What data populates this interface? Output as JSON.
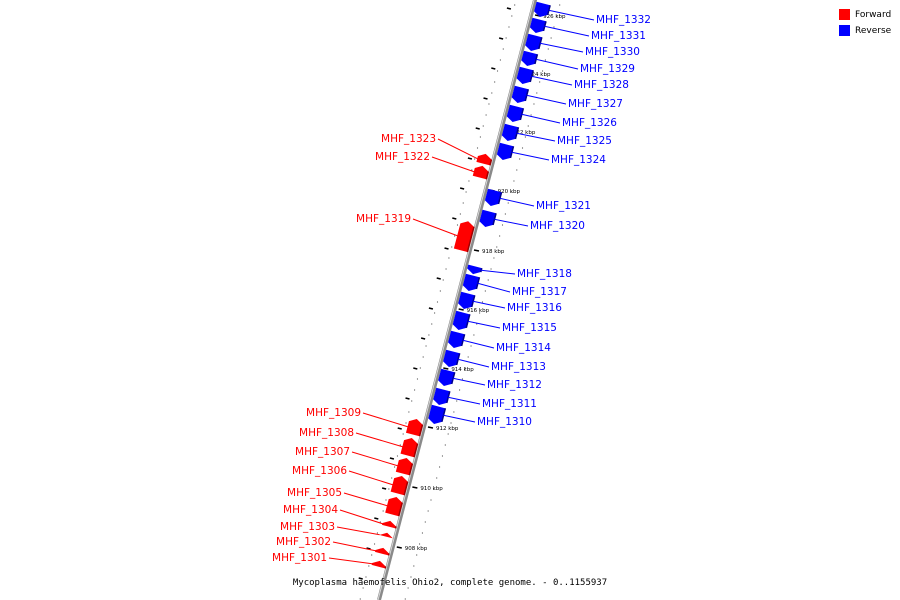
{
  "caption": "Mycoplasma haemofelis Ohio2, complete genome. - 0..1155937",
  "legend": [
    {
      "label": "Forward",
      "color": "#ff0000"
    },
    {
      "label": "Reverse",
      "color": "#0000ff"
    }
  ],
  "colors": {
    "forward": "#ff0000",
    "reverse": "#0000ff",
    "axis": "#8a8a8a",
    "tick": "#000000"
  },
  "scale": {
    "kbp_labels": [
      "908 kbp",
      "910 kbp",
      "912 kbp",
      "914 kbp",
      "916 kbp",
      "918 kbp",
      "920 kbp",
      "922 kbp",
      "924 kbp",
      "926 kbp"
    ]
  },
  "genes": [
    {
      "name": "MHF_1332",
      "strand": "reverse"
    },
    {
      "name": "MHF_1331",
      "strand": "reverse"
    },
    {
      "name": "MHF_1330",
      "strand": "reverse"
    },
    {
      "name": "MHF_1329",
      "strand": "reverse"
    },
    {
      "name": "MHF_1328",
      "strand": "reverse"
    },
    {
      "name": "MHF_1327",
      "strand": "reverse"
    },
    {
      "name": "MHF_1326",
      "strand": "reverse"
    },
    {
      "name": "MHF_1325",
      "strand": "reverse"
    },
    {
      "name": "MHF_1324",
      "strand": "reverse"
    },
    {
      "name": "MHF_1323",
      "strand": "forward"
    },
    {
      "name": "MHF_1322",
      "strand": "forward"
    },
    {
      "name": "MHF_1321",
      "strand": "reverse"
    },
    {
      "name": "MHF_1320",
      "strand": "reverse"
    },
    {
      "name": "MHF_1319",
      "strand": "forward"
    },
    {
      "name": "MHF_1318",
      "strand": "reverse"
    },
    {
      "name": "MHF_1317",
      "strand": "reverse"
    },
    {
      "name": "MHF_1316",
      "strand": "reverse"
    },
    {
      "name": "MHF_1315",
      "strand": "reverse"
    },
    {
      "name": "MHF_1314",
      "strand": "reverse"
    },
    {
      "name": "MHF_1313",
      "strand": "reverse"
    },
    {
      "name": "MHF_1312",
      "strand": "reverse"
    },
    {
      "name": "MHF_1311",
      "strand": "reverse"
    },
    {
      "name": "MHF_1310",
      "strand": "reverse"
    },
    {
      "name": "MHF_1309",
      "strand": "forward"
    },
    {
      "name": "MHF_1308",
      "strand": "forward"
    },
    {
      "name": "MHF_1307",
      "strand": "forward"
    },
    {
      "name": "MHF_1306",
      "strand": "forward"
    },
    {
      "name": "MHF_1305",
      "strand": "forward"
    },
    {
      "name": "MHF_1304",
      "strand": "forward"
    },
    {
      "name": "MHF_1303",
      "strand": "forward"
    },
    {
      "name": "MHF_1302",
      "strand": "forward"
    },
    {
      "name": "MHF_1301",
      "strand": "forward"
    }
  ]
}
